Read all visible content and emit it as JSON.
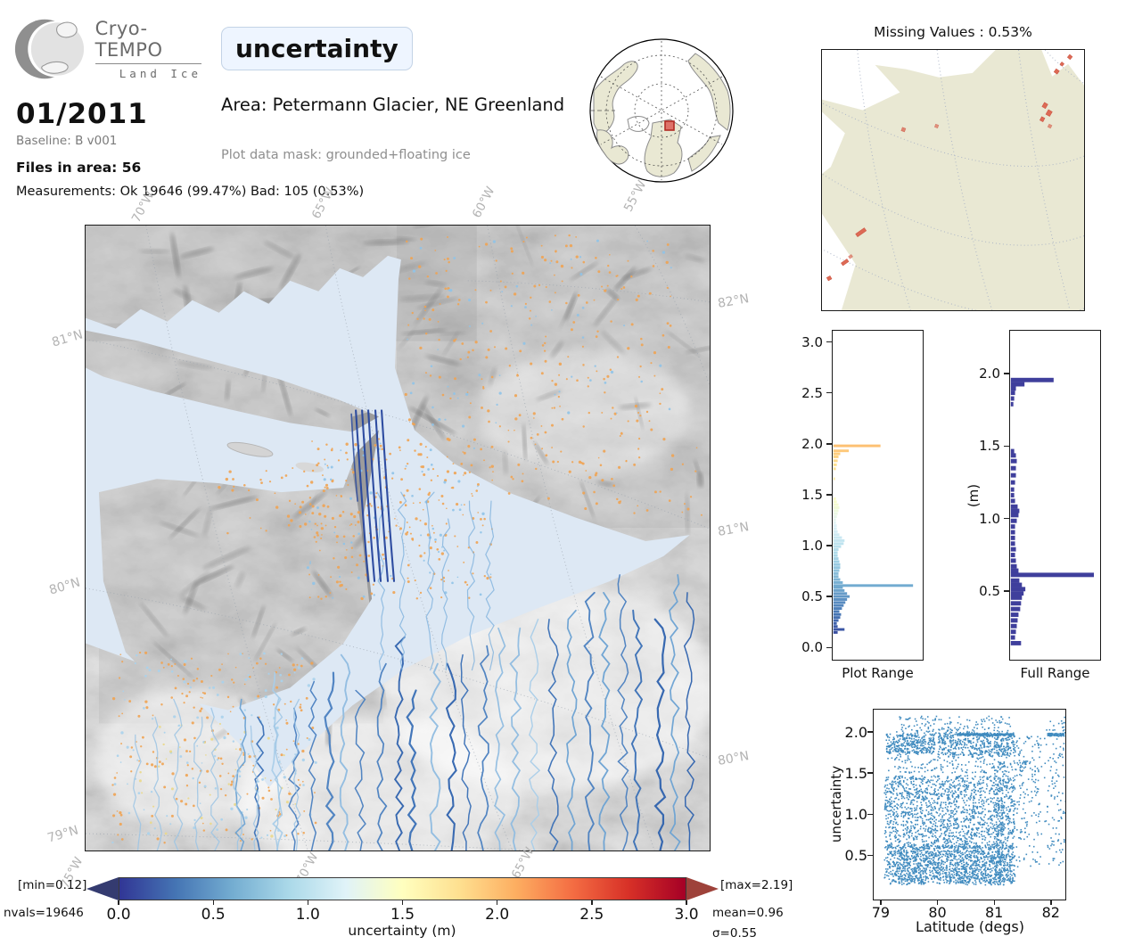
{
  "header": {
    "logo_title": "Cryo-TEMPO",
    "logo_subtitle": "Land Ice",
    "date": "01/2011",
    "baseline": "Baseline: B v001",
    "files_in_area": "Files in area: 56",
    "measurements": "Measurements: Ok 19646 (99.47%) Bad: 105 (0.53%)",
    "variable_title": "uncertainty",
    "area": "Area: Petermann Glacier, NE Greenland",
    "mask": "Plot data mask: grounded+floating ice"
  },
  "missing_map": {
    "title": "Missing Values : 0.53%"
  },
  "main_map": {
    "lon_top": [
      "70°W",
      "65°W",
      "60°W",
      "55°W"
    ],
    "lon_bottom": [
      "75°W",
      "70°W",
      "65°W"
    ],
    "lat_left": [
      "81°N",
      "80°N",
      "79°N"
    ],
    "lat_right": [
      "82°N",
      "81°N",
      "80°N"
    ]
  },
  "colorbar": {
    "axis_label": "uncertainty (m)",
    "ticks": [
      "0.0",
      "0.5",
      "1.0",
      "1.5",
      "2.0",
      "2.5",
      "3.0"
    ],
    "min_label": "[min=0.12]",
    "max_label": "[max=2.19]",
    "nvals_label": "nvals=19646",
    "mean_label": "mean=0.96",
    "sigma_label": "σ=0.55",
    "cmap_stops": [
      "#313695",
      "#4575b4",
      "#74add1",
      "#abd9e9",
      "#e0f3f8",
      "#ffffbf",
      "#fee090",
      "#fdae61",
      "#f46d43",
      "#d73027",
      "#a50026"
    ],
    "under_arrow_color": "#343b70",
    "over_arrow_color": "#9e423a"
  },
  "chart_data": [
    {
      "type": "bar",
      "orientation": "horizontal",
      "title": "Plot Range",
      "value_axis_label": "uncertainty (m)",
      "ylim": [
        -0.13,
        3.12
      ],
      "yticks": [
        0.0,
        0.5,
        1.0,
        1.5,
        2.0,
        2.5,
        3.0
      ],
      "color_rule": "RdYlBu_r colormap over 0-3 m",
      "bins": [
        [
          0.12,
          0.05
        ],
        [
          0.15,
          0.13
        ],
        [
          0.18,
          0.05
        ],
        [
          0.21,
          0.04
        ],
        [
          0.24,
          0.06
        ],
        [
          0.27,
          0.08
        ],
        [
          0.3,
          0.09
        ],
        [
          0.33,
          0.07
        ],
        [
          0.36,
          0.1
        ],
        [
          0.39,
          0.12
        ],
        [
          0.42,
          0.14
        ],
        [
          0.45,
          0.16
        ],
        [
          0.48,
          0.19
        ],
        [
          0.51,
          0.16
        ],
        [
          0.54,
          0.13
        ],
        [
          0.57,
          0.11
        ],
        [
          0.59,
          0.93
        ],
        [
          0.62,
          0.11
        ],
        [
          0.65,
          0.08
        ],
        [
          0.68,
          0.06
        ],
        [
          0.71,
          0.06
        ],
        [
          0.74,
          0.07
        ],
        [
          0.77,
          0.08
        ],
        [
          0.8,
          0.08
        ],
        [
          0.83,
          0.07
        ],
        [
          0.86,
          0.06
        ],
        [
          0.89,
          0.05
        ],
        [
          0.92,
          0.05
        ],
        [
          0.95,
          0.06
        ],
        [
          0.98,
          0.09
        ],
        [
          1.01,
          0.12
        ],
        [
          1.04,
          0.13
        ],
        [
          1.07,
          0.1
        ],
        [
          1.1,
          0.07
        ],
        [
          1.13,
          0.05
        ],
        [
          1.16,
          0.04
        ],
        [
          1.19,
          0.04
        ],
        [
          1.22,
          0.03
        ],
        [
          1.25,
          0.03
        ],
        [
          1.28,
          0.04
        ],
        [
          1.31,
          0.05
        ],
        [
          1.34,
          0.06
        ],
        [
          1.37,
          0.07
        ],
        [
          1.4,
          0.06
        ],
        [
          1.43,
          0.04
        ],
        [
          1.46,
          0.03
        ],
        [
          1.66,
          0.02
        ],
        [
          1.76,
          0.03
        ],
        [
          1.8,
          0.04
        ],
        [
          1.84,
          0.05
        ],
        [
          1.88,
          0.06
        ],
        [
          1.91,
          0.08
        ],
        [
          1.94,
          0.18
        ],
        [
          1.99,
          0.55
        ]
      ]
    },
    {
      "type": "bar",
      "orientation": "horizontal",
      "title": "Full Range",
      "ylabel": "(m)",
      "ylim": [
        0.02,
        2.3
      ],
      "yticks": [
        0.5,
        1.0,
        1.5,
        2.0
      ],
      "color": "#3f3f9c",
      "bins": [
        [
          0.12,
          0.12
        ],
        [
          0.16,
          0.05
        ],
        [
          0.2,
          0.06
        ],
        [
          0.24,
          0.07
        ],
        [
          0.28,
          0.08
        ],
        [
          0.32,
          0.09
        ],
        [
          0.36,
          0.11
        ],
        [
          0.4,
          0.12
        ],
        [
          0.44,
          0.13
        ],
        [
          0.47,
          0.15
        ],
        [
          0.5,
          0.17
        ],
        [
          0.53,
          0.13
        ],
        [
          0.56,
          0.1
        ],
        [
          0.6,
          0.97
        ],
        [
          0.63,
          0.09
        ],
        [
          0.66,
          0.07
        ],
        [
          0.7,
          0.06
        ],
        [
          0.74,
          0.05
        ],
        [
          0.78,
          0.06
        ],
        [
          0.82,
          0.05
        ],
        [
          0.86,
          0.05
        ],
        [
          0.9,
          0.05
        ],
        [
          0.94,
          0.05
        ],
        [
          0.98,
          0.07
        ],
        [
          1.02,
          0.09
        ],
        [
          1.05,
          0.1
        ],
        [
          1.08,
          0.08
        ],
        [
          1.12,
          0.05
        ],
        [
          1.16,
          0.04
        ],
        [
          1.2,
          0.04
        ],
        [
          1.25,
          0.05
        ],
        [
          1.3,
          0.06
        ],
        [
          1.35,
          0.06
        ],
        [
          1.4,
          0.07
        ],
        [
          1.44,
          0.06
        ],
        [
          1.47,
          0.04
        ],
        [
          1.8,
          0.03
        ],
        [
          1.84,
          0.04
        ],
        [
          1.88,
          0.05
        ],
        [
          1.91,
          0.06
        ],
        [
          1.94,
          0.16
        ],
        [
          1.97,
          0.5
        ]
      ]
    },
    {
      "type": "scatter",
      "xlabel": "Latitude (degs)",
      "ylabel": "uncertainty",
      "xlim": [
        78.86,
        82.27
      ],
      "ylim": [
        -0.05,
        2.28
      ],
      "xticks": [
        79,
        80,
        81,
        82
      ],
      "yticks": [
        0.5,
        1.0,
        1.5,
        2.0
      ],
      "color": "#1f77b4",
      "clusters": [
        [
          79.05,
          81.38,
          0.13,
          1.47,
          2300
        ],
        [
          79.2,
          81.3,
          0.15,
          0.55,
          650
        ],
        [
          79.05,
          81.35,
          0.575,
          0.615,
          130
        ],
        [
          79.08,
          79.95,
          1.74,
          1.98,
          320
        ],
        [
          80.0,
          81.38,
          1.72,
          2.0,
          420
        ],
        [
          80.35,
          81.35,
          1.962,
          1.985,
          260
        ],
        [
          79.1,
          81.6,
          1.5,
          1.74,
          180
        ],
        [
          79.2,
          81.3,
          1.98,
          2.2,
          150
        ],
        [
          81.4,
          81.85,
          0.35,
          1.95,
          150
        ],
        [
          81.9,
          82.28,
          0.35,
          2.2,
          120
        ],
        [
          81.95,
          82.25,
          1.955,
          1.99,
          90
        ],
        [
          81.0,
          81.2,
          0.13,
          2.0,
          180
        ]
      ]
    }
  ]
}
